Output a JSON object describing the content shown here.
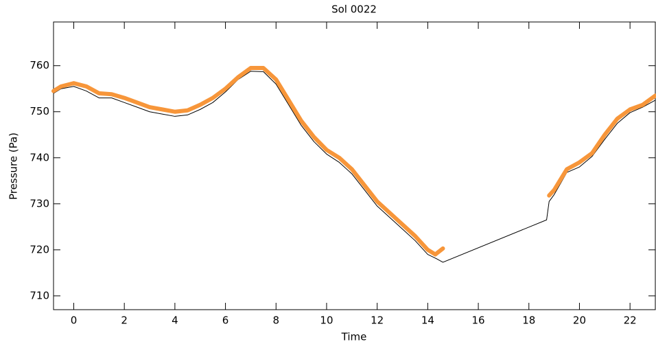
{
  "chart_data": {
    "type": "line",
    "title": "Sol 0022",
    "x_label": "Time",
    "y_label": "Pressure (Pa)",
    "x": [
      -0.8,
      -0.5,
      0,
      0.5,
      1,
      1.5,
      2,
      2.5,
      3,
      3.5,
      4,
      4.5,
      5,
      5.5,
      6,
      6.5,
      7,
      7.5,
      8,
      8.5,
      9,
      9.5,
      10,
      10.5,
      11,
      11.5,
      12,
      12.5,
      13,
      13.5,
      14,
      14.3,
      14.6,
      18.7,
      18.8,
      19,
      19.5,
      20,
      20.5,
      21,
      21.5,
      22,
      22.5,
      23
    ],
    "series": [
      {
        "color": "#000000",
        "values": [
          754,
          755,
          755.5,
          754.5,
          753,
          753,
          752,
          751,
          750,
          749.5,
          749,
          749.3,
          750.5,
          752,
          754.3,
          757,
          758.8,
          758.7,
          756,
          751.5,
          747,
          743.5,
          740.8,
          739,
          736.5,
          733,
          729.5,
          727,
          724.5,
          722,
          719,
          718.2,
          717.3,
          726.5,
          730.5,
          732,
          736.8,
          738,
          740.3,
          744,
          747.5,
          749.8,
          751,
          752.5
        ]
      },
      {
        "color": "#f7963a",
        "values": [
          754.5,
          755.5,
          756.2,
          755.5,
          754,
          753.8,
          753,
          752,
          751,
          750.5,
          750,
          750.3,
          751.5,
          753,
          755,
          757.5,
          759.5,
          759.5,
          757,
          752.5,
          748,
          744.5,
          741.7,
          740,
          737.5,
          734,
          730.5,
          728,
          725.5,
          723,
          720,
          719,
          720.3,
          null,
          731.8,
          733,
          737.5,
          739,
          741,
          745,
          748.5,
          750.5,
          751.5,
          753.5
        ]
      }
    ],
    "xlim": [
      -0.8,
      23
    ],
    "ylim": [
      707,
      769.5
    ],
    "xticks": [
      0,
      2,
      4,
      6,
      8,
      10,
      12,
      14,
      16,
      18,
      20,
      22
    ],
    "yticks": [
      710,
      720,
      730,
      740,
      750,
      760
    ]
  }
}
